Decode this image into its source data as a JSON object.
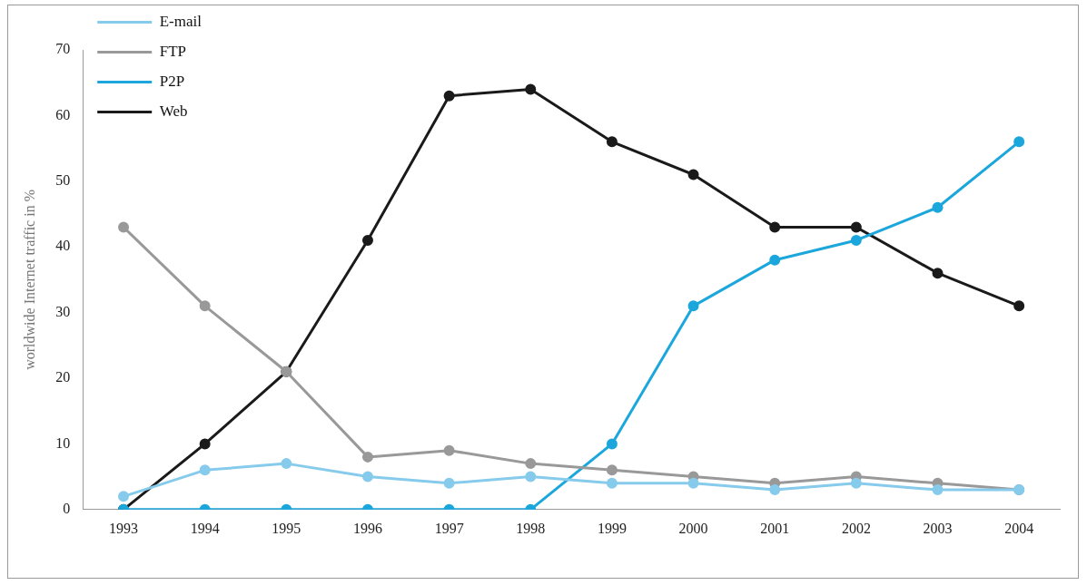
{
  "chart_data": {
    "type": "line",
    "ylabel": "worldwide Internet traffic in %",
    "categories": [
      "1993",
      "1994",
      "1995",
      "1996",
      "1997",
      "1998",
      "1999",
      "2000",
      "2001",
      "2002",
      "2003",
      "2004"
    ],
    "series": [
      {
        "name": "E-mail",
        "color": "#86cbeb",
        "values": [
          2,
          6,
          7,
          5,
          4,
          5,
          4,
          4,
          3,
          4,
          3,
          3
        ]
      },
      {
        "name": "FTP",
        "color": "#999999",
        "values": [
          43,
          31,
          21,
          8,
          9,
          7,
          6,
          5,
          4,
          5,
          4,
          3
        ]
      },
      {
        "name": "P2P",
        "color": "#1ba6dc",
        "values": [
          0,
          0,
          0,
          0,
          0,
          0,
          10,
          31,
          38,
          41,
          46,
          56
        ]
      },
      {
        "name": "Web",
        "color": "#1a1a1a",
        "values": [
          0,
          10,
          21,
          41,
          63,
          64,
          56,
          51,
          43,
          43,
          36,
          31
        ]
      }
    ],
    "ylim": [
      0,
      70
    ],
    "yticks": [
      0,
      10,
      20,
      30,
      40,
      50,
      60,
      70
    ],
    "grid": false,
    "legend": "top left",
    "marker": "circle",
    "line_style": "solid"
  }
}
